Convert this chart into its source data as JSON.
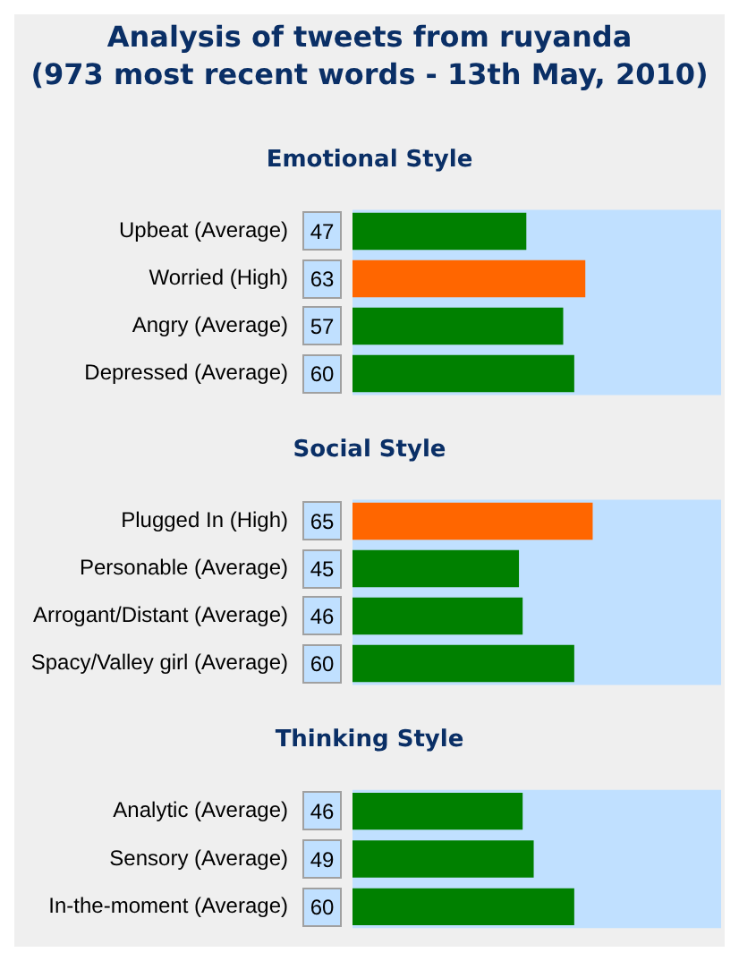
{
  "chart_data": [
    {
      "type": "bar",
      "orientation": "horizontal",
      "title": "Analysis of tweets from ruyanda\n(973 most recent words - 13th May, 2010)",
      "subtitle": "Emotional Style",
      "categories": [
        "Upbeat (Average)",
        "Worried (High)",
        "Angry (Average)",
        "Depressed (Average)"
      ],
      "values": [
        47,
        63,
        57,
        60
      ],
      "colors": [
        "#008000",
        "#ff6600",
        "#008000",
        "#008000"
      ],
      "xlim": [
        0,
        100
      ],
      "bands": [
        {
          "axis": "x",
          "from": 0,
          "to": 100,
          "color": "#c0e0ff"
        }
      ],
      "tick_labels": "y",
      "grid": false,
      "legend": false,
      "data_labels": true
    },
    {
      "type": "bar",
      "orientation": "horizontal",
      "subtitle": "Social Style",
      "categories": [
        "Plugged In (High)",
        "Personable (Average)",
        "Arrogant/Distant (Average)",
        "Spacy/Valley girl (Average)"
      ],
      "values": [
        65,
        45,
        46,
        60
      ],
      "colors": [
        "#ff6600",
        "#008000",
        "#008000",
        "#008000"
      ],
      "xlim": [
        0,
        100
      ],
      "bands": [
        {
          "axis": "x",
          "from": 0,
          "to": 100,
          "color": "#c0e0ff"
        }
      ],
      "tick_labels": "y",
      "grid": false,
      "legend": false,
      "data_labels": true
    },
    {
      "type": "bar",
      "orientation": "horizontal",
      "subtitle": "Thinking Style",
      "categories": [
        "Analytic (Average)",
        "Sensory (Average)",
        "In-the-moment (Average)"
      ],
      "values": [
        46,
        49,
        60
      ],
      "colors": [
        "#008000",
        "#008000",
        "#008000"
      ],
      "xlim": [
        0,
        100
      ],
      "bands": [
        {
          "axis": "x",
          "from": 0,
          "to": 100,
          "color": "#c0e0ff"
        }
      ],
      "tick_labels": "y",
      "grid": false,
      "legend": false,
      "data_labels": true
    }
  ]
}
